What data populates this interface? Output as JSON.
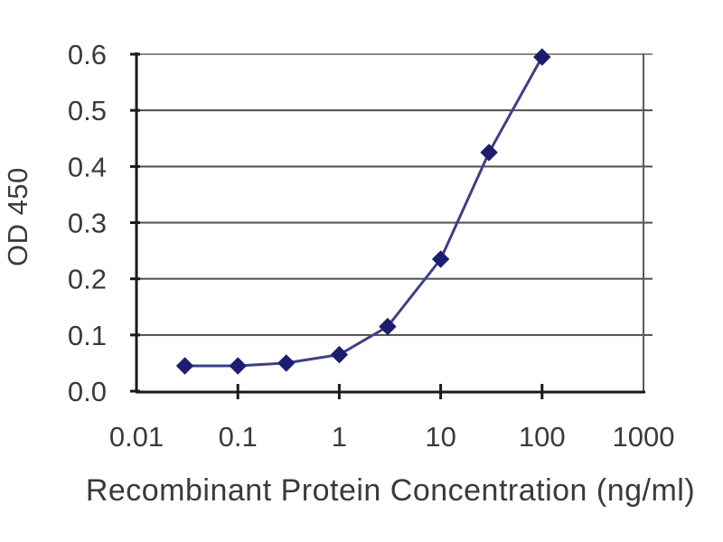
{
  "chart_data": {
    "type": "line",
    "title": "",
    "xlabel": "Recombinant Protein Concentration (ng/ml)",
    "ylabel": "OD 450",
    "x_scale": "log",
    "xlim": [
      0.01,
      1000
    ],
    "ylim": [
      0.0,
      0.6
    ],
    "x_ticks": [
      0.01,
      0.1,
      1,
      10,
      100,
      1000
    ],
    "x_tick_labels": [
      "0.01",
      "0.1",
      "1",
      "10",
      "100",
      "1000"
    ],
    "y_ticks": [
      0.0,
      0.1,
      0.2,
      0.3,
      0.4,
      0.5,
      0.6
    ],
    "y_tick_labels": [
      "0.0",
      "0.1",
      "0.2",
      "0.3",
      "0.4",
      "0.5",
      "0.6"
    ],
    "grid": "horizontal",
    "legend": "none",
    "series": [
      {
        "name": "OD 450",
        "marker": "diamond",
        "x": [
          0.03,
          0.1,
          0.3,
          1,
          3,
          10,
          30,
          100
        ],
        "y": [
          0.045,
          0.045,
          0.05,
          0.065,
          0.115,
          0.235,
          0.425,
          0.595
        ]
      }
    ],
    "colors": {
      "line": "#3f3f85",
      "marker": "#1d1d70",
      "gridline": "#4d4d4d",
      "gridline_top": "#8a8a8a",
      "axis": "#1a1a1a",
      "plot_border_right": "#5a5a5a",
      "text": "#3a3a3a",
      "background": "#ffffff"
    }
  }
}
